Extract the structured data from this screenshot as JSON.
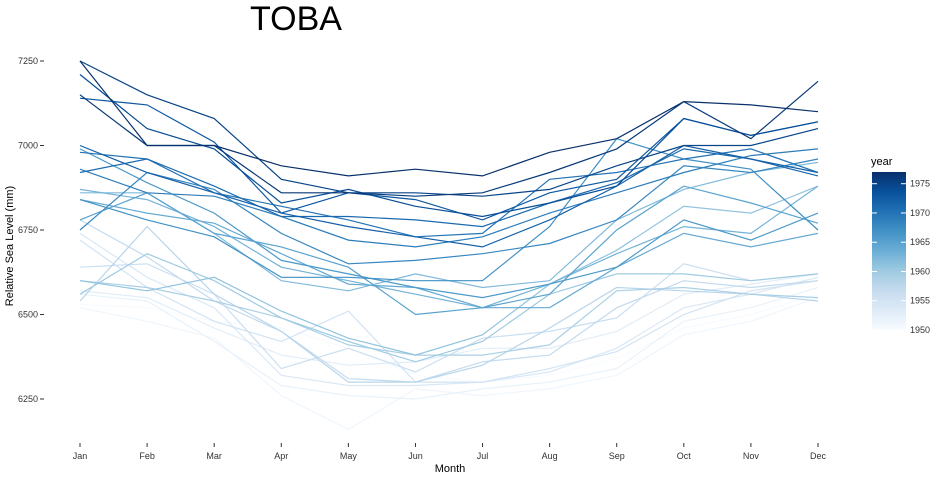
{
  "chart_data": {
    "type": "line",
    "title": "TOBA",
    "xlabel": "Month",
    "ylabel": "Relative Sea Level (mm)",
    "categories": [
      "Jan",
      "Feb",
      "Mar",
      "Apr",
      "May",
      "Jun",
      "Jul",
      "Aug",
      "Sep",
      "Oct",
      "Nov",
      "Dec"
    ],
    "yticks": [
      6250,
      6500,
      6750,
      7000,
      7250
    ],
    "ylim": [
      6120,
      7300
    ],
    "grid": false,
    "legend": {
      "title": "year",
      "placement": "right",
      "ticks": [
        1950,
        1955,
        1960,
        1965,
        1970,
        1975
      ],
      "range": [
        1950,
        1977
      ],
      "colors": [
        "#f7fbff",
        "#deebf7",
        "#c6dbef",
        "#9ecae1",
        "#6baed6",
        "#4292c6",
        "#2171b5",
        "#08519c",
        "#08306b"
      ]
    },
    "series": [
      {
        "year": 1950,
        "values": [
          6530,
          6520,
          6480,
          6460,
          6400,
          6320,
          6300,
          6320,
          6370,
          6460,
          6500,
          6560
        ]
      },
      {
        "year": 1951,
        "values": [
          6520,
          6480,
          6430,
          6260,
          6160,
          6280,
          6260,
          6280,
          6320,
          6440,
          6480,
          6550
        ]
      },
      {
        "year": 1952,
        "values": [
          6560,
          6540,
          6420,
          6290,
          6260,
          6250,
          6280,
          6300,
          6340,
          6480,
          6520,
          6580
        ]
      },
      {
        "year": 1953,
        "values": [
          6570,
          6550,
          6460,
          6380,
          6350,
          6360,
          6400,
          6400,
          6450,
          6560,
          6590,
          6620
        ]
      },
      {
        "year": 1954,
        "values": [
          6740,
          6610,
          6520,
          6320,
          6290,
          6290,
          6300,
          6330,
          6400,
          6520,
          6560,
          6610
        ]
      },
      {
        "year": 1955,
        "values": [
          6720,
          6580,
          6480,
          6420,
          6510,
          6300,
          6300,
          6340,
          6390,
          6500,
          6570,
          6600
        ]
      },
      {
        "year": 1956,
        "values": [
          6640,
          6650,
          6560,
          6340,
          6400,
          6330,
          6430,
          6450,
          6490,
          6650,
          6600,
          6620
        ]
      },
      {
        "year": 1957,
        "values": [
          6780,
          6670,
          6540,
          6450,
          6310,
          6300,
          6360,
          6380,
          6520,
          6600,
          6580,
          6600
        ]
      },
      {
        "year": 1958,
        "values": [
          6540,
          6760,
          6560,
          6450,
          6300,
          6300,
          6350,
          6460,
          6580,
          6570,
          6560,
          6540
        ]
      },
      {
        "year": 1959,
        "values": [
          6600,
          6580,
          6540,
          6490,
          6410,
          6380,
          6380,
          6410,
          6570,
          6580,
          6560,
          6550
        ]
      },
      {
        "year": 1960,
        "values": [
          6560,
          6680,
          6600,
          6490,
          6420,
          6360,
          6420,
          6560,
          6620,
          6620,
          6600,
          6620
        ]
      },
      {
        "year": 1961,
        "values": [
          6600,
          6570,
          6610,
          6510,
          6430,
          6380,
          6440,
          6590,
          6690,
          6820,
          6800,
          6880
        ]
      },
      {
        "year": 1962,
        "values": [
          6860,
          6860,
          6740,
          6600,
          6570,
          6620,
          6580,
          6600,
          6780,
          6870,
          6920,
          6950
        ]
      },
      {
        "year": 1963,
        "values": [
          6870,
          6840,
          6760,
          6640,
          6600,
          6560,
          6520,
          6590,
          6680,
          6760,
          6740,
          6880
        ]
      },
      {
        "year": 1964,
        "values": [
          6840,
          6800,
          6770,
          6680,
          6590,
          6580,
          6520,
          6520,
          6640,
          6740,
          6700,
          6740
        ]
      },
      {
        "year": 1965,
        "values": [
          6780,
          6860,
          6740,
          6700,
          6640,
          6500,
          6520,
          6560,
          6750,
          6880,
          6830,
          6770
        ]
      },
      {
        "year": 1966,
        "values": [
          6990,
          6890,
          6800,
          6660,
          6620,
          6580,
          6550,
          6590,
          6640,
          6780,
          6720,
          6800
        ]
      },
      {
        "year": 1967,
        "values": [
          6840,
          6780,
          6730,
          6610,
          6610,
          6600,
          6600,
          6760,
          7020,
          6960,
          6930,
          6750
        ]
      },
      {
        "year": 1968,
        "values": [
          6750,
          6920,
          6870,
          6740,
          6650,
          6660,
          6680,
          6710,
          6780,
          6940,
          6920,
          6960
        ]
      },
      {
        "year": 1969,
        "values": [
          6930,
          6860,
          6850,
          6790,
          6720,
          6700,
          6730,
          6800,
          6860,
          6920,
          6970,
          6990
        ]
      },
      {
        "year": 1970,
        "values": [
          6980,
          6960,
          6860,
          6820,
          6780,
          6730,
          6740,
          6900,
          6920,
          6960,
          6990,
          6920
        ]
      },
      {
        "year": 1971,
        "values": [
          6920,
          6960,
          6880,
          6790,
          6790,
          6780,
          6760,
          6830,
          6890,
          6990,
          6960,
          6910
        ]
      },
      {
        "year": 1972,
        "values": [
          7000,
          6920,
          6860,
          6800,
          6760,
          6730,
          6700,
          6780,
          6880,
          7000,
          6960,
          6920
        ]
      },
      {
        "year": 1973,
        "values": [
          7140,
          7120,
          7010,
          6800,
          6860,
          6840,
          6780,
          6860,
          6900,
          7080,
          7030,
          7070
        ]
      },
      {
        "year": 1974,
        "values": [
          7210,
          7050,
          6990,
          6830,
          6870,
          6820,
          6790,
          6830,
          6880,
          7080,
          7030,
          7070
        ]
      },
      {
        "year": 1975,
        "values": [
          7250,
          7150,
          7080,
          6900,
          6860,
          6860,
          6850,
          6870,
          6940,
          7000,
          7000,
          7050
        ]
      },
      {
        "year": 1976,
        "values": [
          7150,
          7000,
          7000,
          6860,
          6860,
          6850,
          6860,
          6920,
          6990,
          7130,
          7020,
          7190
        ]
      },
      {
        "year": 1977,
        "values": [
          7250,
          7000,
          7000,
          6940,
          6910,
          6930,
          6910,
          6980,
          7020,
          7130,
          7120,
          7100
        ]
      }
    ]
  }
}
